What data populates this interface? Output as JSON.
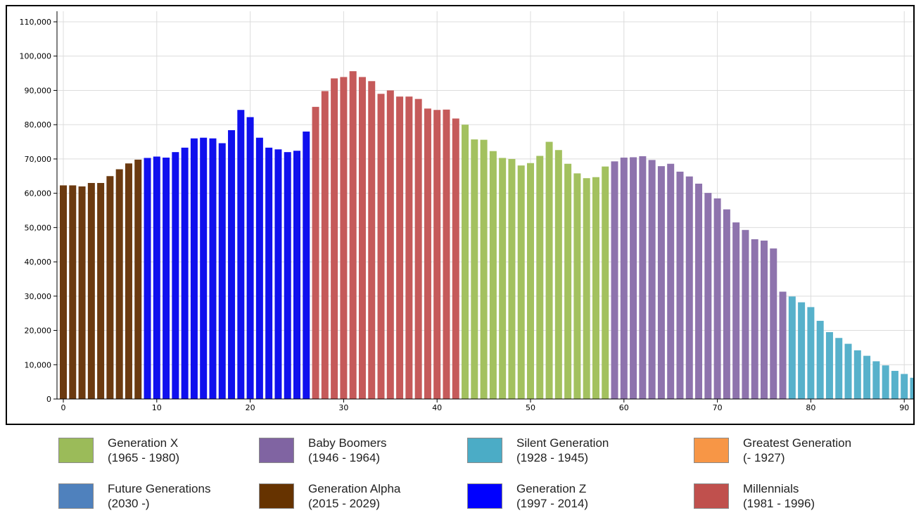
{
  "chart_data": {
    "type": "bar",
    "x": [
      0,
      1,
      2,
      3,
      4,
      5,
      6,
      7,
      8,
      9,
      10,
      11,
      12,
      13,
      14,
      15,
      16,
      17,
      18,
      19,
      20,
      21,
      22,
      23,
      24,
      25,
      26,
      27,
      28,
      29,
      30,
      31,
      32,
      33,
      34,
      35,
      36,
      37,
      38,
      39,
      40,
      41,
      42,
      43,
      44,
      45,
      46,
      47,
      48,
      49,
      50,
      51,
      52,
      53,
      54,
      55,
      56,
      57,
      58,
      59,
      60,
      61,
      62,
      63,
      64,
      65,
      66,
      67,
      68,
      69,
      70,
      71,
      72,
      73,
      74,
      75,
      76,
      77,
      78,
      79,
      80,
      81,
      82,
      83,
      84,
      85,
      86,
      87,
      88,
      89,
      90,
      91
    ],
    "values": [
      62300,
      62300,
      62000,
      63000,
      63000,
      65000,
      67000,
      68700,
      69800,
      70300,
      70700,
      70400,
      72000,
      73300,
      76000,
      76200,
      76000,
      74600,
      78400,
      84300,
      82200,
      76200,
      73300,
      72800,
      72000,
      72400,
      78000,
      85200,
      89800,
      93500,
      93900,
      95600,
      93900,
      92700,
      89000,
      90000,
      88200,
      88200,
      87500,
      84700,
      84300,
      84400,
      81800,
      80000,
      75700,
      75600,
      72300,
      70300,
      70000,
      68100,
      68800,
      70900,
      75000,
      72600,
      68600,
      65800,
      64400,
      64700,
      67800,
      69300,
      70400,
      70500,
      70800,
      69700,
      67900,
      68600,
      66300,
      64900,
      62800,
      60100,
      58500,
      55300,
      51500,
      49300,
      46600,
      46200,
      43900,
      31300,
      29900,
      28200,
      26800,
      22800,
      19500,
      17800,
      16100,
      14200,
      12600,
      11000,
      9800,
      8200,
      7300,
      6200
    ],
    "groups": [
      "alpha",
      "alpha",
      "alpha",
      "alpha",
      "alpha",
      "alpha",
      "alpha",
      "alpha",
      "alpha",
      "z",
      "z",
      "z",
      "z",
      "z",
      "z",
      "z",
      "z",
      "z",
      "z",
      "z",
      "z",
      "z",
      "z",
      "z",
      "z",
      "z",
      "z",
      "mil",
      "mil",
      "mil",
      "mil",
      "mil",
      "mil",
      "mil",
      "mil",
      "mil",
      "mil",
      "mil",
      "mil",
      "mil",
      "mil",
      "mil",
      "mil",
      "x",
      "x",
      "x",
      "x",
      "x",
      "x",
      "x",
      "x",
      "x",
      "x",
      "x",
      "x",
      "x",
      "x",
      "x",
      "x",
      "boom",
      "boom",
      "boom",
      "boom",
      "boom",
      "boom",
      "boom",
      "boom",
      "boom",
      "boom",
      "boom",
      "boom",
      "boom",
      "boom",
      "boom",
      "boom",
      "boom",
      "boom",
      "boom",
      "silent",
      "silent",
      "silent",
      "silent",
      "silent",
      "silent",
      "silent",
      "silent",
      "silent",
      "silent",
      "silent",
      "silent",
      "silent",
      "silent"
    ],
    "group_colors": {
      "alpha": "#6b3a10",
      "z": "#1010ee",
      "mil": "#c55a5a",
      "x": "#a3c15f",
      "boom": "#8e73ad",
      "silent": "#57b1cb"
    },
    "xlim": [
      0,
      91
    ],
    "ylim": [
      0,
      110000
    ],
    "x_ticks": [
      0,
      10,
      20,
      30,
      40,
      50,
      60,
      70,
      80,
      90
    ],
    "x_tick_labels": [
      "0",
      "10",
      "20",
      "30",
      "40",
      "50",
      "60",
      "70",
      "80",
      "90"
    ],
    "y_ticks": [
      0,
      10000,
      20000,
      30000,
      40000,
      50000,
      60000,
      70000,
      80000,
      90000,
      100000,
      110000
    ],
    "y_tick_labels": [
      "0",
      "10,000",
      "20,000",
      "30,000",
      "40,000",
      "50,000",
      "60,000",
      "70,000",
      "80,000",
      "90,000",
      "100,000",
      "110,000"
    ],
    "grid": true,
    "title": "",
    "xlabel": "",
    "ylabel": ""
  },
  "legend": [
    {
      "key": "gen-x",
      "name": "Generation X",
      "range": "(1965 - 1980)",
      "color": "#9bbb59"
    },
    {
      "key": "baby-boomers",
      "name": "Baby Boomers",
      "range": "(1946 - 1964)",
      "color": "#8064a2"
    },
    {
      "key": "silent-generation",
      "name": "Silent Generation",
      "range": "(1928 - 1945)",
      "color": "#4bacc6"
    },
    {
      "key": "greatest-generation",
      "name": "Greatest Generation",
      "range": "(- 1927)",
      "color": "#f79646"
    },
    {
      "key": "future-generations",
      "name": "Future Generations",
      "range": "(2030 -)",
      "color": "#4f81bd"
    },
    {
      "key": "gen-alpha",
      "name": "Generation Alpha",
      "range": "(2015 - 2029)",
      "color": "#663300"
    },
    {
      "key": "gen-z",
      "name": "Generation Z",
      "range": "(1997 - 2014)",
      "color": "#0000ff"
    },
    {
      "key": "millennials",
      "name": "Millennials",
      "range": "(1981 - 1996)",
      "color": "#c0504d"
    }
  ]
}
